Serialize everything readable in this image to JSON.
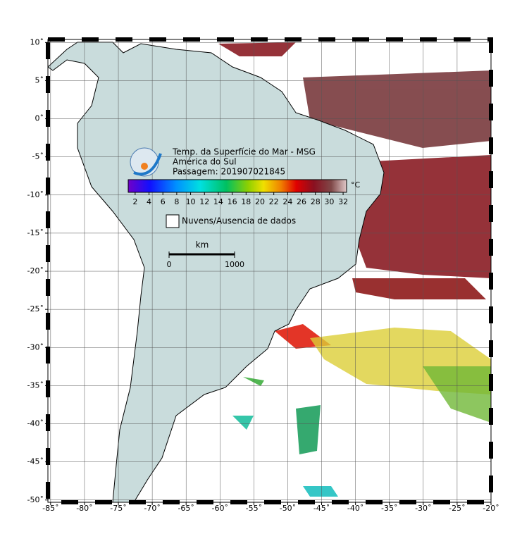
{
  "map": {
    "title": "Temp. da Superfície do Mar - MSG",
    "region": "América do Sul",
    "pass": "Passagem: 201907021845",
    "colorbar": {
      "unit": "°C",
      "range": [
        1,
        32.5
      ],
      "ticks": [
        2,
        4,
        6,
        8,
        10,
        12,
        14,
        16,
        18,
        20,
        22,
        24,
        26,
        28,
        30,
        32
      ]
    },
    "no_data": "Nuvens/Ausencia de dados",
    "scale": {
      "unit": "km",
      "ticks": [
        0,
        1000
      ]
    },
    "xlim": [
      -85.4,
      -20
    ],
    "ylim": [
      -50.3,
      10.4
    ],
    "xticks": [
      {
        "value": -85,
        "label": "-85˚"
      },
      {
        "value": -80,
        "label": "-80˚"
      },
      {
        "value": -75,
        "label": "-75˚"
      },
      {
        "value": -70,
        "label": "-70˚"
      },
      {
        "value": -65,
        "label": "-65˚"
      },
      {
        "value": -60,
        "label": "-60˚"
      },
      {
        "value": -55,
        "label": "-55˚"
      },
      {
        "value": -50,
        "label": "-50˚"
      },
      {
        "value": -45,
        "label": "-45˚"
      },
      {
        "value": -40,
        "label": "-40˚"
      },
      {
        "value": -35,
        "label": "-35˚"
      },
      {
        "value": -30,
        "label": "-30˚"
      },
      {
        "value": -25,
        "label": "-25˚"
      },
      {
        "value": -20,
        "label": "-20˚"
      }
    ],
    "yticks": [
      {
        "value": 10,
        "label": "10˚"
      },
      {
        "value": 5,
        "label": "5˚"
      },
      {
        "value": 0,
        "label": "0˚"
      },
      {
        "value": -5,
        "label": "-5˚"
      },
      {
        "value": -10,
        "label": "-10˚"
      },
      {
        "value": -15,
        "label": "-15˚"
      },
      {
        "value": -20,
        "label": "-20˚"
      },
      {
        "value": -25,
        "label": "-25˚"
      },
      {
        "value": -30,
        "label": "-30˚"
      },
      {
        "value": -35,
        "label": "-35˚"
      },
      {
        "value": -40,
        "label": "-40˚"
      },
      {
        "value": -45,
        "label": "-45˚"
      },
      {
        "value": -50,
        "label": "-50˚"
      }
    ],
    "grid": true
  }
}
